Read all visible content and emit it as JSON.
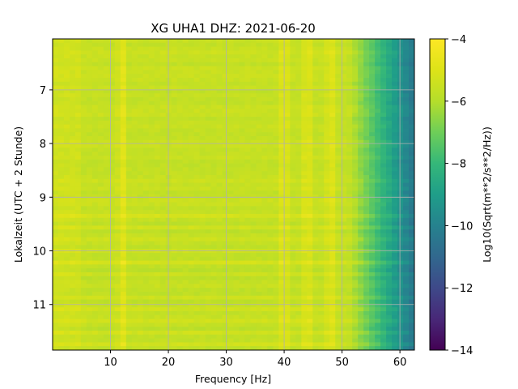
{
  "chart_data": {
    "type": "heatmap",
    "title": "XG UHA1  DHZ: 2021-06-20",
    "xlabel": "Frequency [Hz]",
    "ylabel": "Lokalzeit (UTC + 2 Stunde)",
    "colorbar_label": "Log10(Sqrt(m**2/s**2/Hz))",
    "colormap": "viridis",
    "xlim": [
      0,
      62.5
    ],
    "ylim": [
      11.85,
      6.05
    ],
    "y_inverted": true,
    "clim": [
      -14,
      -4
    ],
    "grid": true,
    "xticks": [
      10,
      20,
      30,
      40,
      50,
      60
    ],
    "yticks": [
      7,
      8,
      9,
      10,
      11
    ],
    "colorbar_ticks": [
      -4,
      -6,
      -8,
      -10,
      -12,
      -14
    ],
    "spectral_lines_hz": [
      12,
      40,
      44,
      48
    ],
    "noise_floor_level": -5.6,
    "high_frequency_rolloff_hz": 51
  }
}
